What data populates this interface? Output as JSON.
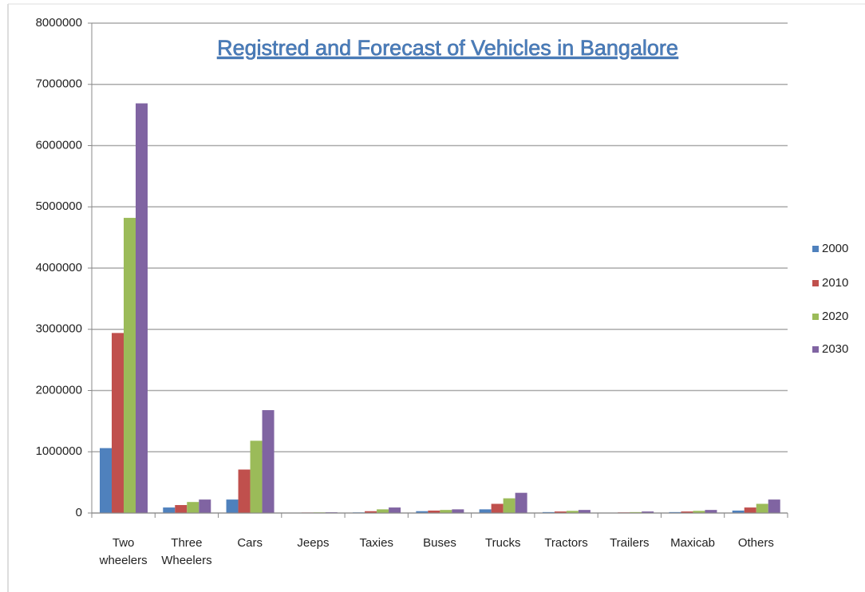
{
  "chart_data": {
    "type": "bar",
    "title": "Registred and Forecast of Vehicles in Bangalore",
    "categories": [
      "Two wheelers",
      "Three Wheelers",
      "Cars",
      "Jeeps",
      "Taxies",
      "Buses",
      "Trucks",
      "Tractors",
      "Trailers",
      "Maxicab",
      "Others"
    ],
    "series": [
      {
        "name": "2000",
        "color": "#4f81bd",
        "values": [
          1060000,
          90000,
          220000,
          5000,
          10000,
          30000,
          60000,
          15000,
          5000,
          15000,
          40000
        ]
      },
      {
        "name": "2010",
        "color": "#c0504d",
        "values": [
          2940000,
          130000,
          710000,
          8000,
          30000,
          40000,
          150000,
          25000,
          10000,
          25000,
          90000
        ]
      },
      {
        "name": "2020",
        "color": "#9bbb59",
        "values": [
          4820000,
          180000,
          1180000,
          10000,
          60000,
          50000,
          240000,
          35000,
          15000,
          35000,
          150000
        ]
      },
      {
        "name": "2030",
        "color": "#8064a2",
        "values": [
          6690000,
          220000,
          1680000,
          12000,
          90000,
          60000,
          330000,
          50000,
          25000,
          50000,
          220000
        ]
      }
    ],
    "ylim": [
      0,
      8000000
    ],
    "yticks": [
      0,
      1000000,
      2000000,
      3000000,
      4000000,
      5000000,
      6000000,
      7000000,
      8000000
    ],
    "grid": true,
    "legend": "right"
  }
}
